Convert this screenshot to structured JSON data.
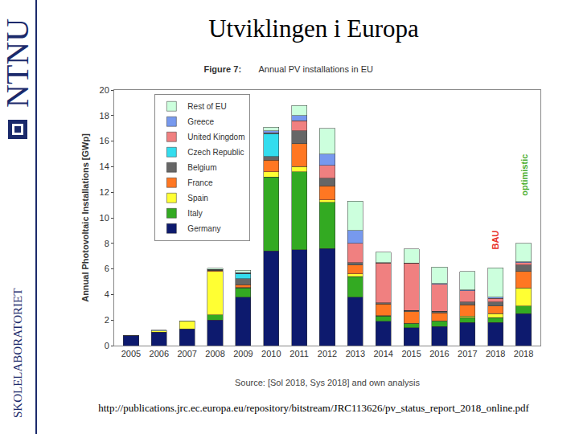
{
  "slide": {
    "title": "Utviklingen i Europa",
    "sidebar": {
      "logo": "NTNU",
      "unit": "SKOLELABORATORIET"
    },
    "url": "http://publications.jrc.ec.europa.eu/repository/bitstream/JRC113626/pv_status_report_2018_online.pdf"
  },
  "chart_data": {
    "type": "bar",
    "stacked": true,
    "title": "Figure 7:",
    "subtitle": "Annual PV installations in EU",
    "y_label": "Annual Photovoltaic Installations [GWp]",
    "source": "Source: [Sol 2018, Sys 2018] and own analysis",
    "categories": [
      "2005",
      "2006",
      "2007",
      "2008",
      "2009",
      "2010",
      "2011",
      "2012",
      "2013",
      "2014",
      "2015",
      "2016",
      "2017",
      "2018",
      "2018"
    ],
    "series": [
      {
        "name": "Germany",
        "color": "#0d1a6e",
        "values": [
          0.8,
          1.05,
          1.3,
          2.0,
          3.8,
          7.4,
          7.5,
          7.6,
          3.8,
          1.9,
          1.4,
          1.5,
          1.8,
          1.8,
          2.5
        ]
      },
      {
        "name": "Italy",
        "color": "#33aa22",
        "values": [
          0,
          0,
          0,
          0.4,
          0.7,
          5.8,
          6.1,
          3.6,
          1.6,
          0.4,
          0.3,
          0.4,
          0.4,
          0.4,
          0.6
        ]
      },
      {
        "name": "Spain",
        "color": "#ffff33",
        "values": [
          0,
          0.1,
          0.6,
          3.4,
          0.05,
          0.4,
          0.4,
          0.2,
          0.2,
          0.05,
          0.05,
          0.05,
          0.1,
          0.3,
          1.4
        ]
      },
      {
        "name": "France",
        "color": "#ff7722",
        "values": [
          0,
          0,
          0,
          0.05,
          0.2,
          0.9,
          1.8,
          1.1,
          0.7,
          0.9,
          0.9,
          0.6,
          0.9,
          0.6,
          1.3
        ]
      },
      {
        "name": "Belgium",
        "color": "#666666",
        "values": [
          0,
          0,
          0,
          0.05,
          0.5,
          0.3,
          1.0,
          0.6,
          0.2,
          0.1,
          0.1,
          0.15,
          0.2,
          0.3,
          0.5
        ]
      },
      {
        "name": "Czech Republic",
        "color": "#33ddee",
        "values": [
          0,
          0,
          0,
          0.05,
          0.4,
          1.8,
          0,
          0,
          0,
          0,
          0,
          0,
          0,
          0,
          0
        ]
      },
      {
        "name": "United Kingdom",
        "color": "#f08080",
        "values": [
          0,
          0,
          0,
          0,
          0,
          0.05,
          0.8,
          1.0,
          1.5,
          3.1,
          3.7,
          2.1,
          0.9,
          0.3,
          0.2
        ]
      },
      {
        "name": "Greece",
        "color": "#7799ee",
        "values": [
          0,
          0,
          0,
          0,
          0.05,
          0.15,
          0.4,
          0.9,
          1.0,
          0.05,
          0,
          0.05,
          0.05,
          0.1,
          0.05
        ]
      },
      {
        "name": "Rest of EU",
        "color": "#ccffdd",
        "values": [
          0,
          0.05,
          0.05,
          0.1,
          0.2,
          0.3,
          0.8,
          2.0,
          2.3,
          0.8,
          1.1,
          1.3,
          1.45,
          2.3,
          1.45
        ]
      }
    ],
    "ylim": [
      0,
      20
    ],
    "yticks": [
      0,
      2,
      4,
      6,
      8,
      10,
      12,
      14,
      16,
      18,
      20
    ],
    "grid": false,
    "legend": "top-left",
    "annotations": [
      {
        "text": "BAU",
        "index": 13,
        "color": "#e8322a"
      },
      {
        "text": "optimistic",
        "index": 14,
        "color": "#4caf32"
      }
    ]
  }
}
